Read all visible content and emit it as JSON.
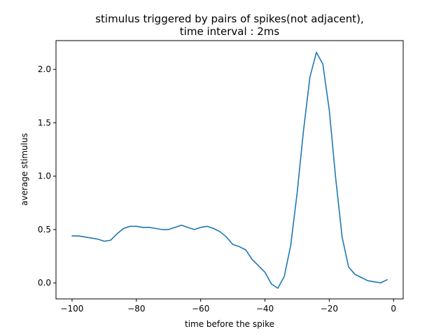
{
  "chart_data": {
    "type": "line",
    "title_lines": [
      "stimulus triggered by pairs of spikes(not adjacent),",
      "time interval : 2ms"
    ],
    "xlabel": "time before the spike",
    "ylabel": "average stimulus",
    "xlim": [
      -105,
      3
    ],
    "ylim": [
      -0.15,
      2.27
    ],
    "xticks": [
      -100,
      -80,
      -60,
      -40,
      -20,
      0
    ],
    "xtick_labels": [
      "−100",
      "−80",
      "−60",
      "−40",
      "−20",
      "0"
    ],
    "yticks": [
      0.0,
      0.5,
      1.0,
      1.5,
      2.0
    ],
    "ytick_labels": [
      "0.0",
      "0.5",
      "1.0",
      "1.5",
      "2.0"
    ],
    "grid": false,
    "color": "#1f77b4",
    "series": [
      {
        "x": [
          -100,
          -98,
          -96,
          -94,
          -92,
          -90,
          -88,
          -86,
          -84,
          -82,
          -80,
          -78,
          -76,
          -74,
          -72,
          -70,
          -68,
          -66,
          -64,
          -62,
          -60,
          -58,
          -56,
          -54,
          -52,
          -50,
          -48,
          -46,
          -44,
          -42,
          -40,
          -38,
          -36,
          -34,
          -32,
          -30,
          -28,
          -26,
          -24,
          -22,
          -20,
          -18,
          -16,
          -14,
          -12,
          -10,
          -8,
          -6,
          -4,
          -2
        ],
        "y": [
          0.44,
          0.44,
          0.43,
          0.42,
          0.41,
          0.39,
          0.4,
          0.46,
          0.51,
          0.53,
          0.53,
          0.52,
          0.52,
          0.51,
          0.5,
          0.5,
          0.52,
          0.54,
          0.52,
          0.5,
          0.52,
          0.53,
          0.51,
          0.48,
          0.43,
          0.36,
          0.34,
          0.31,
          0.22,
          0.16,
          0.1,
          -0.01,
          -0.05,
          0.06,
          0.35,
          0.84,
          1.43,
          1.93,
          2.16,
          2.05,
          1.62,
          0.98,
          0.43,
          0.15,
          0.08,
          0.05,
          0.02,
          0.01,
          0.0,
          0.03
        ]
      }
    ]
  }
}
